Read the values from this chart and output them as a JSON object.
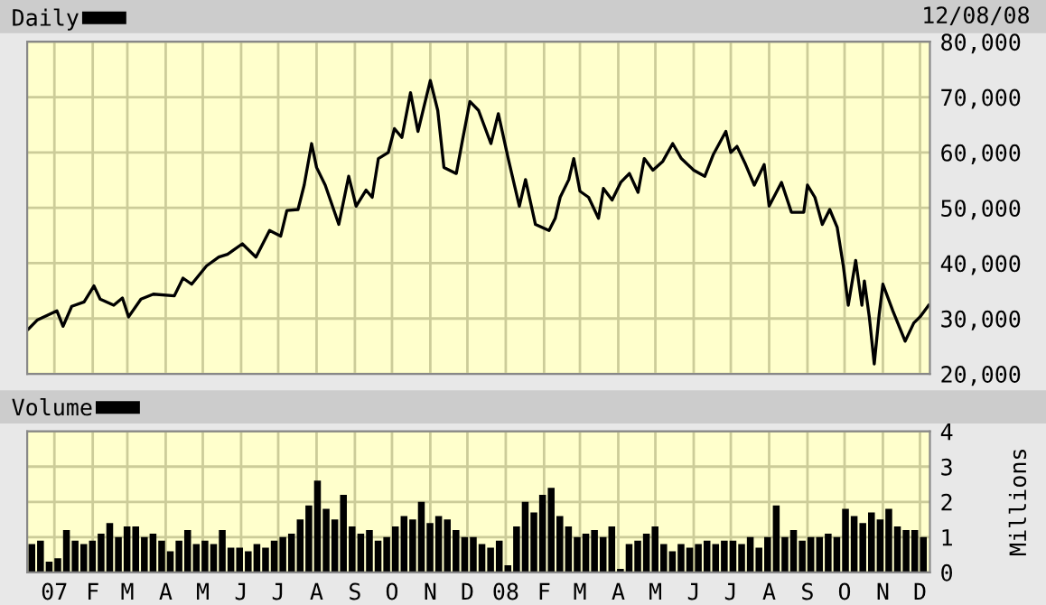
{
  "chart_data": [
    {
      "type": "line",
      "annotations": [
        "12/08/08"
      ],
      "legend": "top left",
      "grid": true,
      "tick_labels": "y",
      "line_style": "solid",
      "xlim": [
        "2006-12-10",
        "2008-12-09"
      ],
      "xticks": [
        {
          "value": "2007-01-01",
          "label": null
        },
        {
          "value": "2007-02-01",
          "label": null
        },
        {
          "value": "2007-03-01",
          "label": null
        },
        {
          "value": "2007-04-01",
          "label": null
        },
        {
          "value": "2007-05-01",
          "label": null
        },
        {
          "value": "2007-06-01",
          "label": null
        },
        {
          "value": "2007-07-01",
          "label": null
        },
        {
          "value": "2007-08-01",
          "label": null
        },
        {
          "value": "2007-09-01",
          "label": null
        },
        {
          "value": "2007-10-01",
          "label": null
        },
        {
          "value": "2007-11-01",
          "label": null
        },
        {
          "value": "2007-12-01",
          "label": null
        },
        {
          "value": "2008-01-01",
          "label": null
        },
        {
          "value": "2008-02-01",
          "label": null
        },
        {
          "value": "2008-03-01",
          "label": null
        },
        {
          "value": "2008-04-01",
          "label": null
        },
        {
          "value": "2008-05-01",
          "label": null
        },
        {
          "value": "2008-06-01",
          "label": null
        },
        {
          "value": "2008-07-01",
          "label": null
        },
        {
          "value": "2008-08-01",
          "label": null
        },
        {
          "value": "2008-09-01",
          "label": null
        },
        {
          "value": "2008-10-01",
          "label": null
        },
        {
          "value": "2008-11-01",
          "label": null
        },
        {
          "value": "2008-12-01",
          "label": null
        }
      ],
      "ylim": [
        20000,
        80000
      ],
      "yticks": [
        {
          "value": 20000,
          "label": "20,000"
        },
        {
          "value": 30000,
          "label": "30,000"
        },
        {
          "value": 40000,
          "label": "40,000"
        },
        {
          "value": 50000,
          "label": "50,000"
        },
        {
          "value": 60000,
          "label": "60,000"
        },
        {
          "value": 70000,
          "label": "70,000"
        },
        {
          "value": 80000,
          "label": "80,000"
        }
      ],
      "series": [
        {
          "name": "Daily",
          "color": "#000000",
          "x": [
            "2006-12-11",
            "2006-12-18",
            "2007-01-03",
            "2007-01-08",
            "2007-01-15",
            "2007-01-25",
            "2007-02-02",
            "2007-02-07",
            "2007-02-18",
            "2007-02-25",
            "2007-03-02",
            "2007-03-12",
            "2007-03-22",
            "2007-04-08",
            "2007-04-15",
            "2007-04-22",
            "2007-05-04",
            "2007-05-14",
            "2007-05-21",
            "2007-06-02",
            "2007-06-13",
            "2007-06-24",
            "2007-07-03",
            "2007-07-08",
            "2007-07-17",
            "2007-07-22",
            "2007-07-28",
            "2007-08-01",
            "2007-08-08",
            "2007-08-19",
            "2007-08-27",
            "2007-09-02",
            "2007-09-10",
            "2007-09-15",
            "2007-09-20",
            "2007-09-28",
            "2007-10-03",
            "2007-10-09",
            "2007-10-16",
            "2007-10-22",
            "2007-11-01",
            "2007-11-07",
            "2007-11-12",
            "2007-11-22",
            "2007-11-27",
            "2007-12-03",
            "2007-12-10",
            "2007-12-20",
            "2007-12-26",
            "2008-01-03",
            "2008-01-12",
            "2008-01-17",
            "2008-01-25",
            "2008-02-05",
            "2008-02-10",
            "2008-02-14",
            "2008-02-21",
            "2008-02-25",
            "2008-03-01",
            "2008-03-08",
            "2008-03-16",
            "2008-03-20",
            "2008-03-27",
            "2008-04-03",
            "2008-04-10",
            "2008-04-17",
            "2008-04-22",
            "2008-04-29",
            "2008-05-07",
            "2008-05-15",
            "2008-05-22",
            "2008-06-01",
            "2008-06-10",
            "2008-06-17",
            "2008-06-27",
            "2008-07-01",
            "2008-07-06",
            "2008-07-13",
            "2008-07-20",
            "2008-07-28",
            "2008-08-01",
            "2008-08-11",
            "2008-08-19",
            "2008-08-29",
            "2008-09-01",
            "2008-09-07",
            "2008-09-13",
            "2008-09-19",
            "2008-09-25",
            "2008-09-30",
            "2008-10-04",
            "2008-10-10",
            "2008-10-15",
            "2008-10-17",
            "2008-10-21",
            "2008-10-25",
            "2008-10-29",
            "2008-11-01",
            "2008-11-09",
            "2008-11-19",
            "2008-11-26",
            "2008-12-01",
            "2008-12-08"
          ],
          "values": [
            28100,
            29700,
            31400,
            28600,
            32200,
            33000,
            35900,
            33500,
            32400,
            33700,
            30300,
            33500,
            34400,
            34100,
            37300,
            36200,
            39500,
            41100,
            41600,
            43500,
            41100,
            45900,
            44900,
            49500,
            49700,
            54100,
            61600,
            57300,
            54100,
            47000,
            55700,
            50300,
            53200,
            51900,
            58900,
            60000,
            64300,
            62700,
            70800,
            63800,
            73000,
            67600,
            57300,
            56200,
            62200,
            69200,
            67600,
            61600,
            67000,
            58900,
            50300,
            55100,
            47000,
            45900,
            48100,
            51900,
            55100,
            58900,
            53000,
            51900,
            48100,
            53500,
            51400,
            54600,
            56200,
            52800,
            58900,
            56800,
            58400,
            61600,
            58900,
            56800,
            55700,
            59700,
            63800,
            60000,
            61100,
            57800,
            54100,
            57800,
            50300,
            54600,
            49200,
            49200,
            54100,
            51900,
            47000,
            49700,
            46500,
            39500,
            32400,
            40500,
            32400,
            36800,
            30300,
            21800,
            30800,
            36200,
            31400,
            25900,
            29200,
            30300,
            32400
          ]
        }
      ]
    },
    {
      "type": "bar",
      "ylabel": "Millions",
      "legend": "top left",
      "grid": true,
      "xlim": [
        "2006-12-10",
        "2008-12-09"
      ],
      "xticks": [
        {
          "value": "2007-01-01",
          "label": "07"
        },
        {
          "value": "2007-02-01",
          "label": "F"
        },
        {
          "value": "2007-03-01",
          "label": "M"
        },
        {
          "value": "2007-04-01",
          "label": "A"
        },
        {
          "value": "2007-05-01",
          "label": "M"
        },
        {
          "value": "2007-06-01",
          "label": "J"
        },
        {
          "value": "2007-07-01",
          "label": "J"
        },
        {
          "value": "2007-08-01",
          "label": "A"
        },
        {
          "value": "2007-09-01",
          "label": "S"
        },
        {
          "value": "2007-10-01",
          "label": "O"
        },
        {
          "value": "2007-11-01",
          "label": "N"
        },
        {
          "value": "2007-12-01",
          "label": "D"
        },
        {
          "value": "2008-01-01",
          "label": "08"
        },
        {
          "value": "2008-02-01",
          "label": "F"
        },
        {
          "value": "2008-03-01",
          "label": "M"
        },
        {
          "value": "2008-04-01",
          "label": "A"
        },
        {
          "value": "2008-05-01",
          "label": "M"
        },
        {
          "value": "2008-06-01",
          "label": "J"
        },
        {
          "value": "2008-07-01",
          "label": "J"
        },
        {
          "value": "2008-08-01",
          "label": "A"
        },
        {
          "value": "2008-09-01",
          "label": "S"
        },
        {
          "value": "2008-10-01",
          "label": "O"
        },
        {
          "value": "2008-11-01",
          "label": "N"
        },
        {
          "value": "2008-12-01",
          "label": "D"
        }
      ],
      "ylim": [
        0,
        4
      ],
      "yticks": [
        0,
        1,
        2,
        3,
        4
      ],
      "series": [
        {
          "name": "Volume",
          "color": "#000000",
          "x": [
            "2006-12-11",
            "2006-12-18",
            "2006-12-25",
            "2007-01-01",
            "2007-01-08",
            "2007-01-15",
            "2007-01-22",
            "2007-01-29",
            "2007-02-05",
            "2007-02-12",
            "2007-02-19",
            "2007-02-26",
            "2007-03-05",
            "2007-03-12",
            "2007-03-19",
            "2007-03-26",
            "2007-04-02",
            "2007-04-09",
            "2007-04-16",
            "2007-04-23",
            "2007-04-30",
            "2007-05-07",
            "2007-05-14",
            "2007-05-21",
            "2007-05-28",
            "2007-06-04",
            "2007-06-11",
            "2007-06-18",
            "2007-06-25",
            "2007-07-02",
            "2007-07-09",
            "2007-07-16",
            "2007-07-23",
            "2007-07-30",
            "2007-08-06",
            "2007-08-13",
            "2007-08-20",
            "2007-08-27",
            "2007-09-03",
            "2007-09-10",
            "2007-09-17",
            "2007-09-24",
            "2007-10-01",
            "2007-10-08",
            "2007-10-15",
            "2007-10-22",
            "2007-10-29",
            "2007-11-05",
            "2007-11-12",
            "2007-11-19",
            "2007-11-26",
            "2007-12-03",
            "2007-12-10",
            "2007-12-17",
            "2007-12-24",
            "2007-12-31",
            "2008-01-07",
            "2008-01-14",
            "2008-01-21",
            "2008-01-28",
            "2008-02-04",
            "2008-02-11",
            "2008-02-18",
            "2008-02-25",
            "2008-03-03",
            "2008-03-10",
            "2008-03-17",
            "2008-03-24",
            "2008-03-31",
            "2008-04-07",
            "2008-04-14",
            "2008-04-21",
            "2008-04-28",
            "2008-05-05",
            "2008-05-12",
            "2008-05-19",
            "2008-05-26",
            "2008-06-02",
            "2008-06-09",
            "2008-06-16",
            "2008-06-23",
            "2008-06-30",
            "2008-07-07",
            "2008-07-14",
            "2008-07-21",
            "2008-07-28",
            "2008-08-04",
            "2008-08-11",
            "2008-08-18",
            "2008-08-25",
            "2008-09-01",
            "2008-09-08",
            "2008-09-15",
            "2008-09-22",
            "2008-09-29",
            "2008-10-06",
            "2008-10-13",
            "2008-10-20",
            "2008-10-27",
            "2008-11-03",
            "2008-11-10",
            "2008-11-17",
            "2008-11-24",
            "2008-12-01"
          ],
          "values": [
            0.8,
            0.9,
            0.3,
            0.4,
            1.2,
            0.9,
            0.8,
            0.9,
            1.1,
            1.4,
            1.0,
            1.3,
            1.3,
            1.0,
            1.1,
            0.9,
            0.6,
            0.9,
            1.2,
            0.8,
            0.9,
            0.8,
            1.2,
            0.7,
            0.7,
            0.6,
            0.8,
            0.7,
            0.9,
            1.0,
            1.1,
            1.5,
            1.9,
            2.6,
            1.8,
            1.5,
            2.2,
            1.3,
            1.1,
            1.2,
            0.9,
            1.0,
            1.3,
            1.6,
            1.5,
            2.0,
            1.4,
            1.6,
            1.5,
            1.2,
            1.0,
            1.0,
            0.8,
            0.7,
            0.9,
            0.2,
            1.3,
            2.0,
            1.7,
            2.2,
            2.4,
            1.6,
            1.3,
            1.0,
            1.1,
            1.2,
            1.0,
            1.3,
            0.1,
            0.8,
            0.9,
            1.1,
            1.3,
            0.8,
            0.6,
            0.8,
            0.7,
            0.8,
            0.9,
            0.8,
            0.9,
            0.9,
            0.8,
            1.0,
            0.7,
            1.0,
            1.9,
            1.0,
            1.2,
            0.9,
            1.0,
            1.0,
            1.1,
            1.0,
            1.8,
            1.6,
            1.4,
            1.7,
            1.5,
            1.8,
            1.3,
            1.2,
            1.2,
            1.0
          ]
        }
      ]
    }
  ]
}
